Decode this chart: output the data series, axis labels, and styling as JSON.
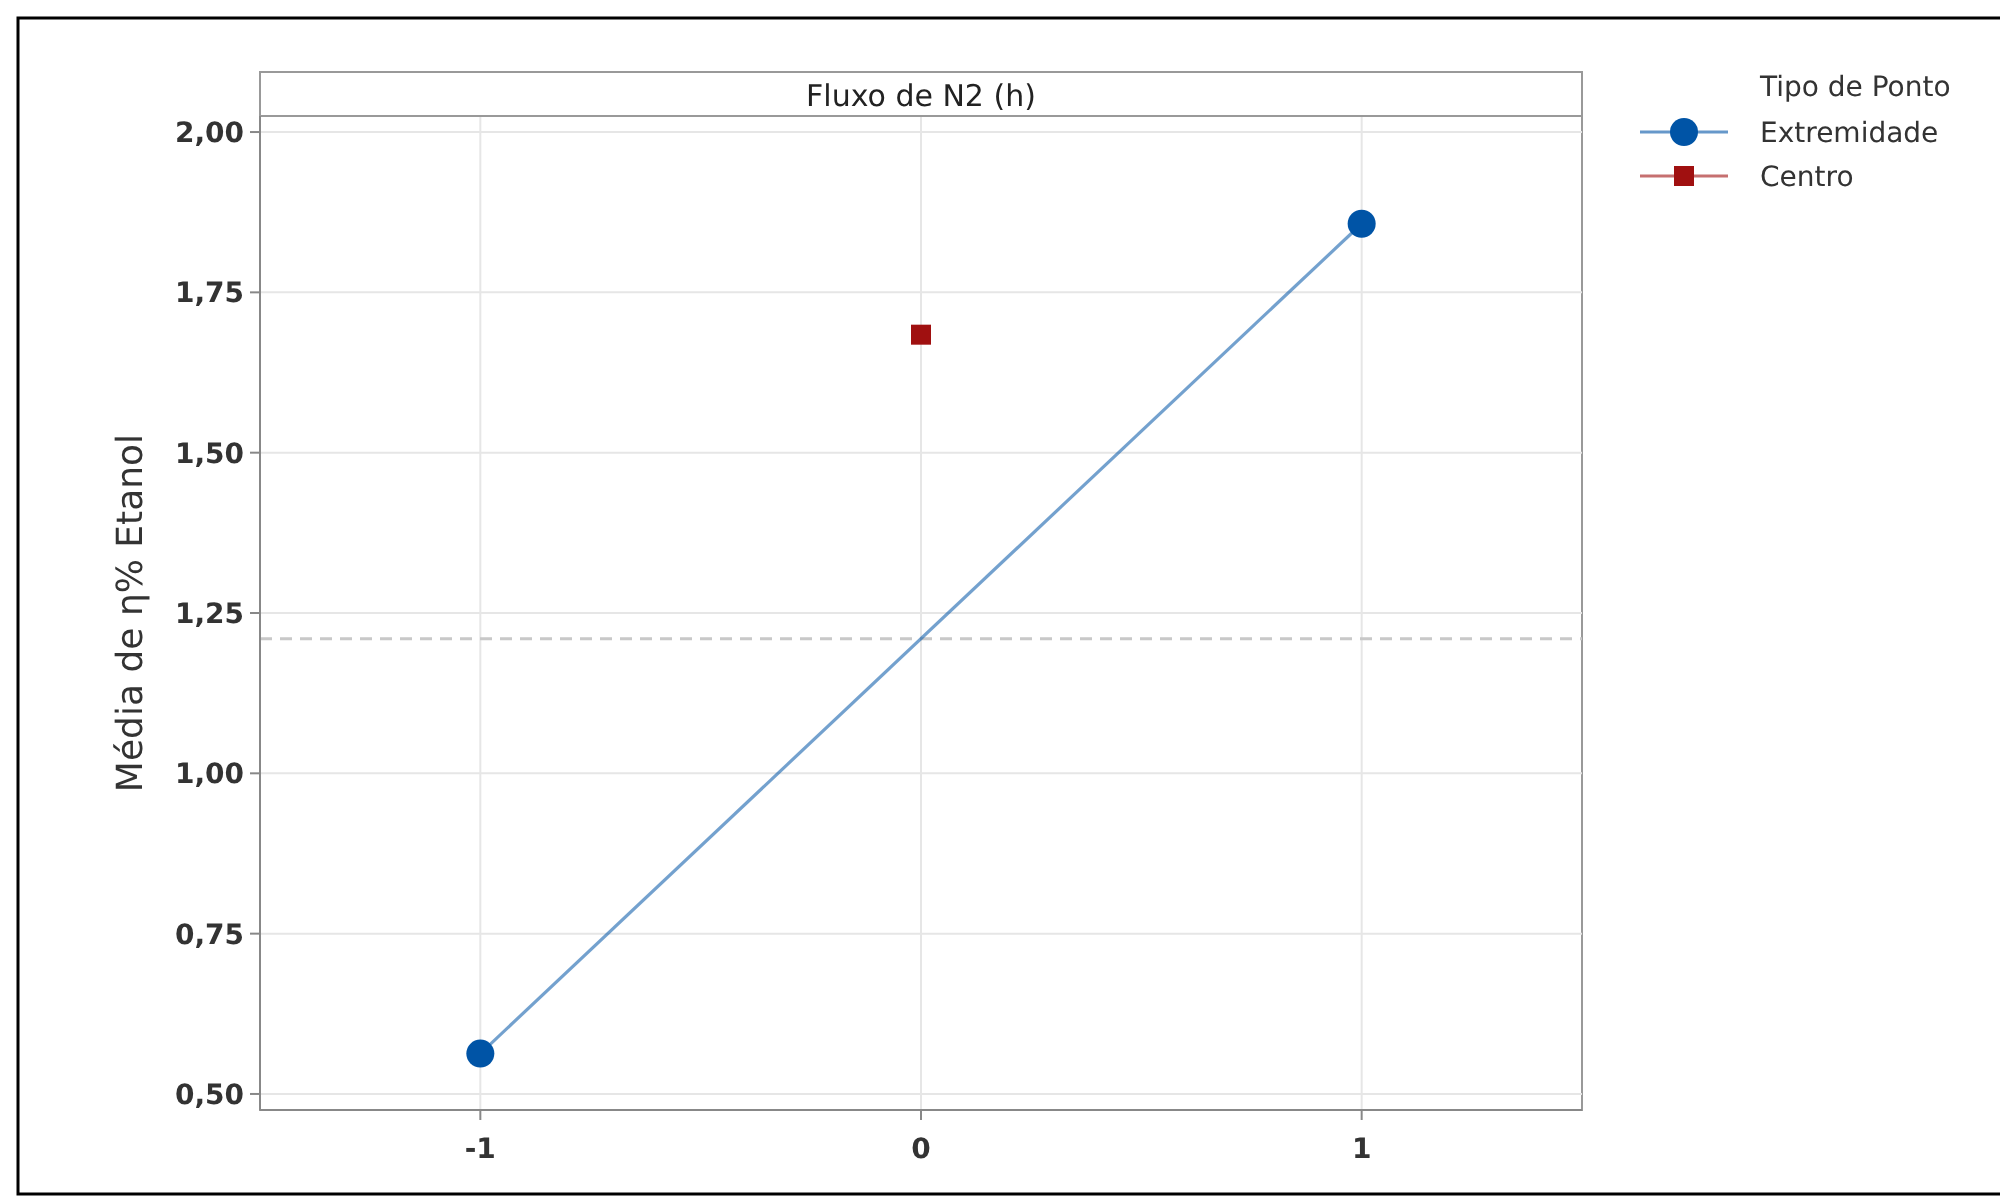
{
  "chart_data": {
    "type": "line",
    "title": "Fluxo de N2 (h)",
    "ylabel": "Média de η% Etanol",
    "legend_title": "Tipo de Ponto",
    "xlim": [
      -1.5,
      1.5
    ],
    "xticks": [
      -1,
      0,
      1
    ],
    "ylim": [
      0.475,
      2.025
    ],
    "yticks": [
      {
        "value": 0.5,
        "label": "0,50"
      },
      {
        "value": 0.75,
        "label": "0,75"
      },
      {
        "value": 1,
        "label": "1,00"
      },
      {
        "value": 1.25,
        "label": "1,25"
      },
      {
        "value": 1.5,
        "label": "1,50"
      },
      {
        "value": 1.75,
        "label": "1,75"
      },
      {
        "value": 2,
        "label": "2,00"
      }
    ],
    "grid": true,
    "legend": "top right",
    "ref_lines": [
      {
        "axis": "y",
        "value": 1.21,
        "color": "#c8c8c8",
        "line_style": "dashed"
      }
    ],
    "series": [
      {
        "name": "Extremidade",
        "type": "line",
        "marker": "circle",
        "color": "#0054a6",
        "x": [
          -1,
          1
        ],
        "values": [
          0.563,
          1.857
        ]
      },
      {
        "name": "Centro",
        "type": "scatter",
        "marker": "square",
        "color": "#a01010",
        "x": [
          0
        ],
        "values": [
          1.684
        ]
      }
    ]
  }
}
